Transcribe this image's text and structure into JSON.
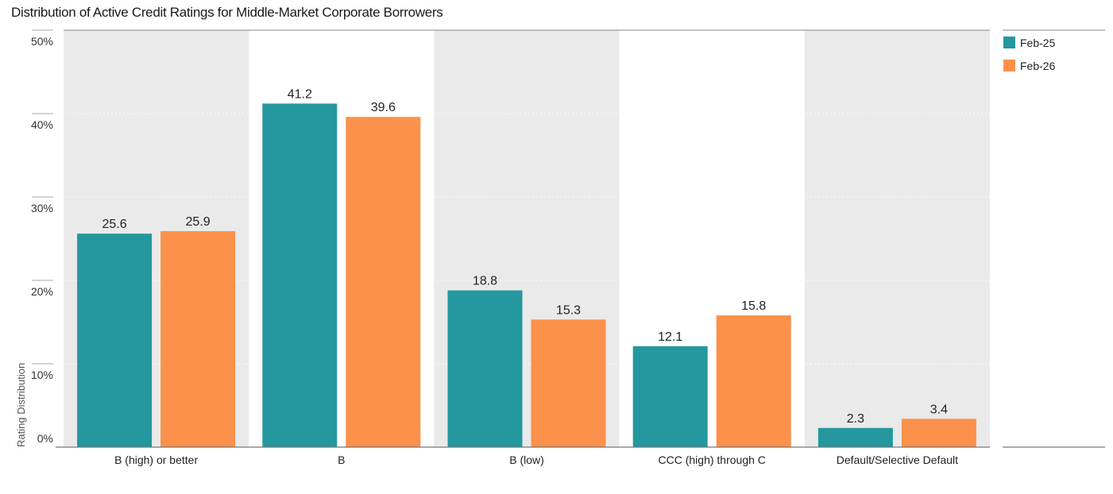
{
  "chart_data": {
    "type": "bar",
    "title": "Distribution of Active Credit Ratings for Middle-Market Corporate Borrowers",
    "ylabel": "Rating Distribution",
    "xlabel": "",
    "categories": [
      "B (high) or better",
      "B",
      "B (low)",
      "CCC (high) through C",
      "Default/Selective Default"
    ],
    "series": [
      {
        "name": "Feb-25",
        "color": "#24989E",
        "values": [
          25.6,
          41.2,
          18.8,
          12.1,
          2.3
        ]
      },
      {
        "name": "Feb-26",
        "color": "#FB914B",
        "values": [
          25.9,
          39.6,
          15.3,
          15.8,
          3.4
        ]
      }
    ],
    "ylim": [
      0,
      50
    ],
    "yticks": [
      0,
      10,
      20,
      30,
      40,
      50
    ],
    "ytick_labels": [
      "0%",
      "10%",
      "20%",
      "30%",
      "40%",
      "50%"
    ],
    "value_labels": [
      [
        "25.6",
        "41.2",
        "18.8",
        "12.1",
        "2.3"
      ],
      [
        "25.9",
        "39.6",
        "15.3",
        "15.8",
        "3.4"
      ]
    ],
    "legend_position": "top-right",
    "grid": true,
    "band_color": "#EAEAEA"
  }
}
